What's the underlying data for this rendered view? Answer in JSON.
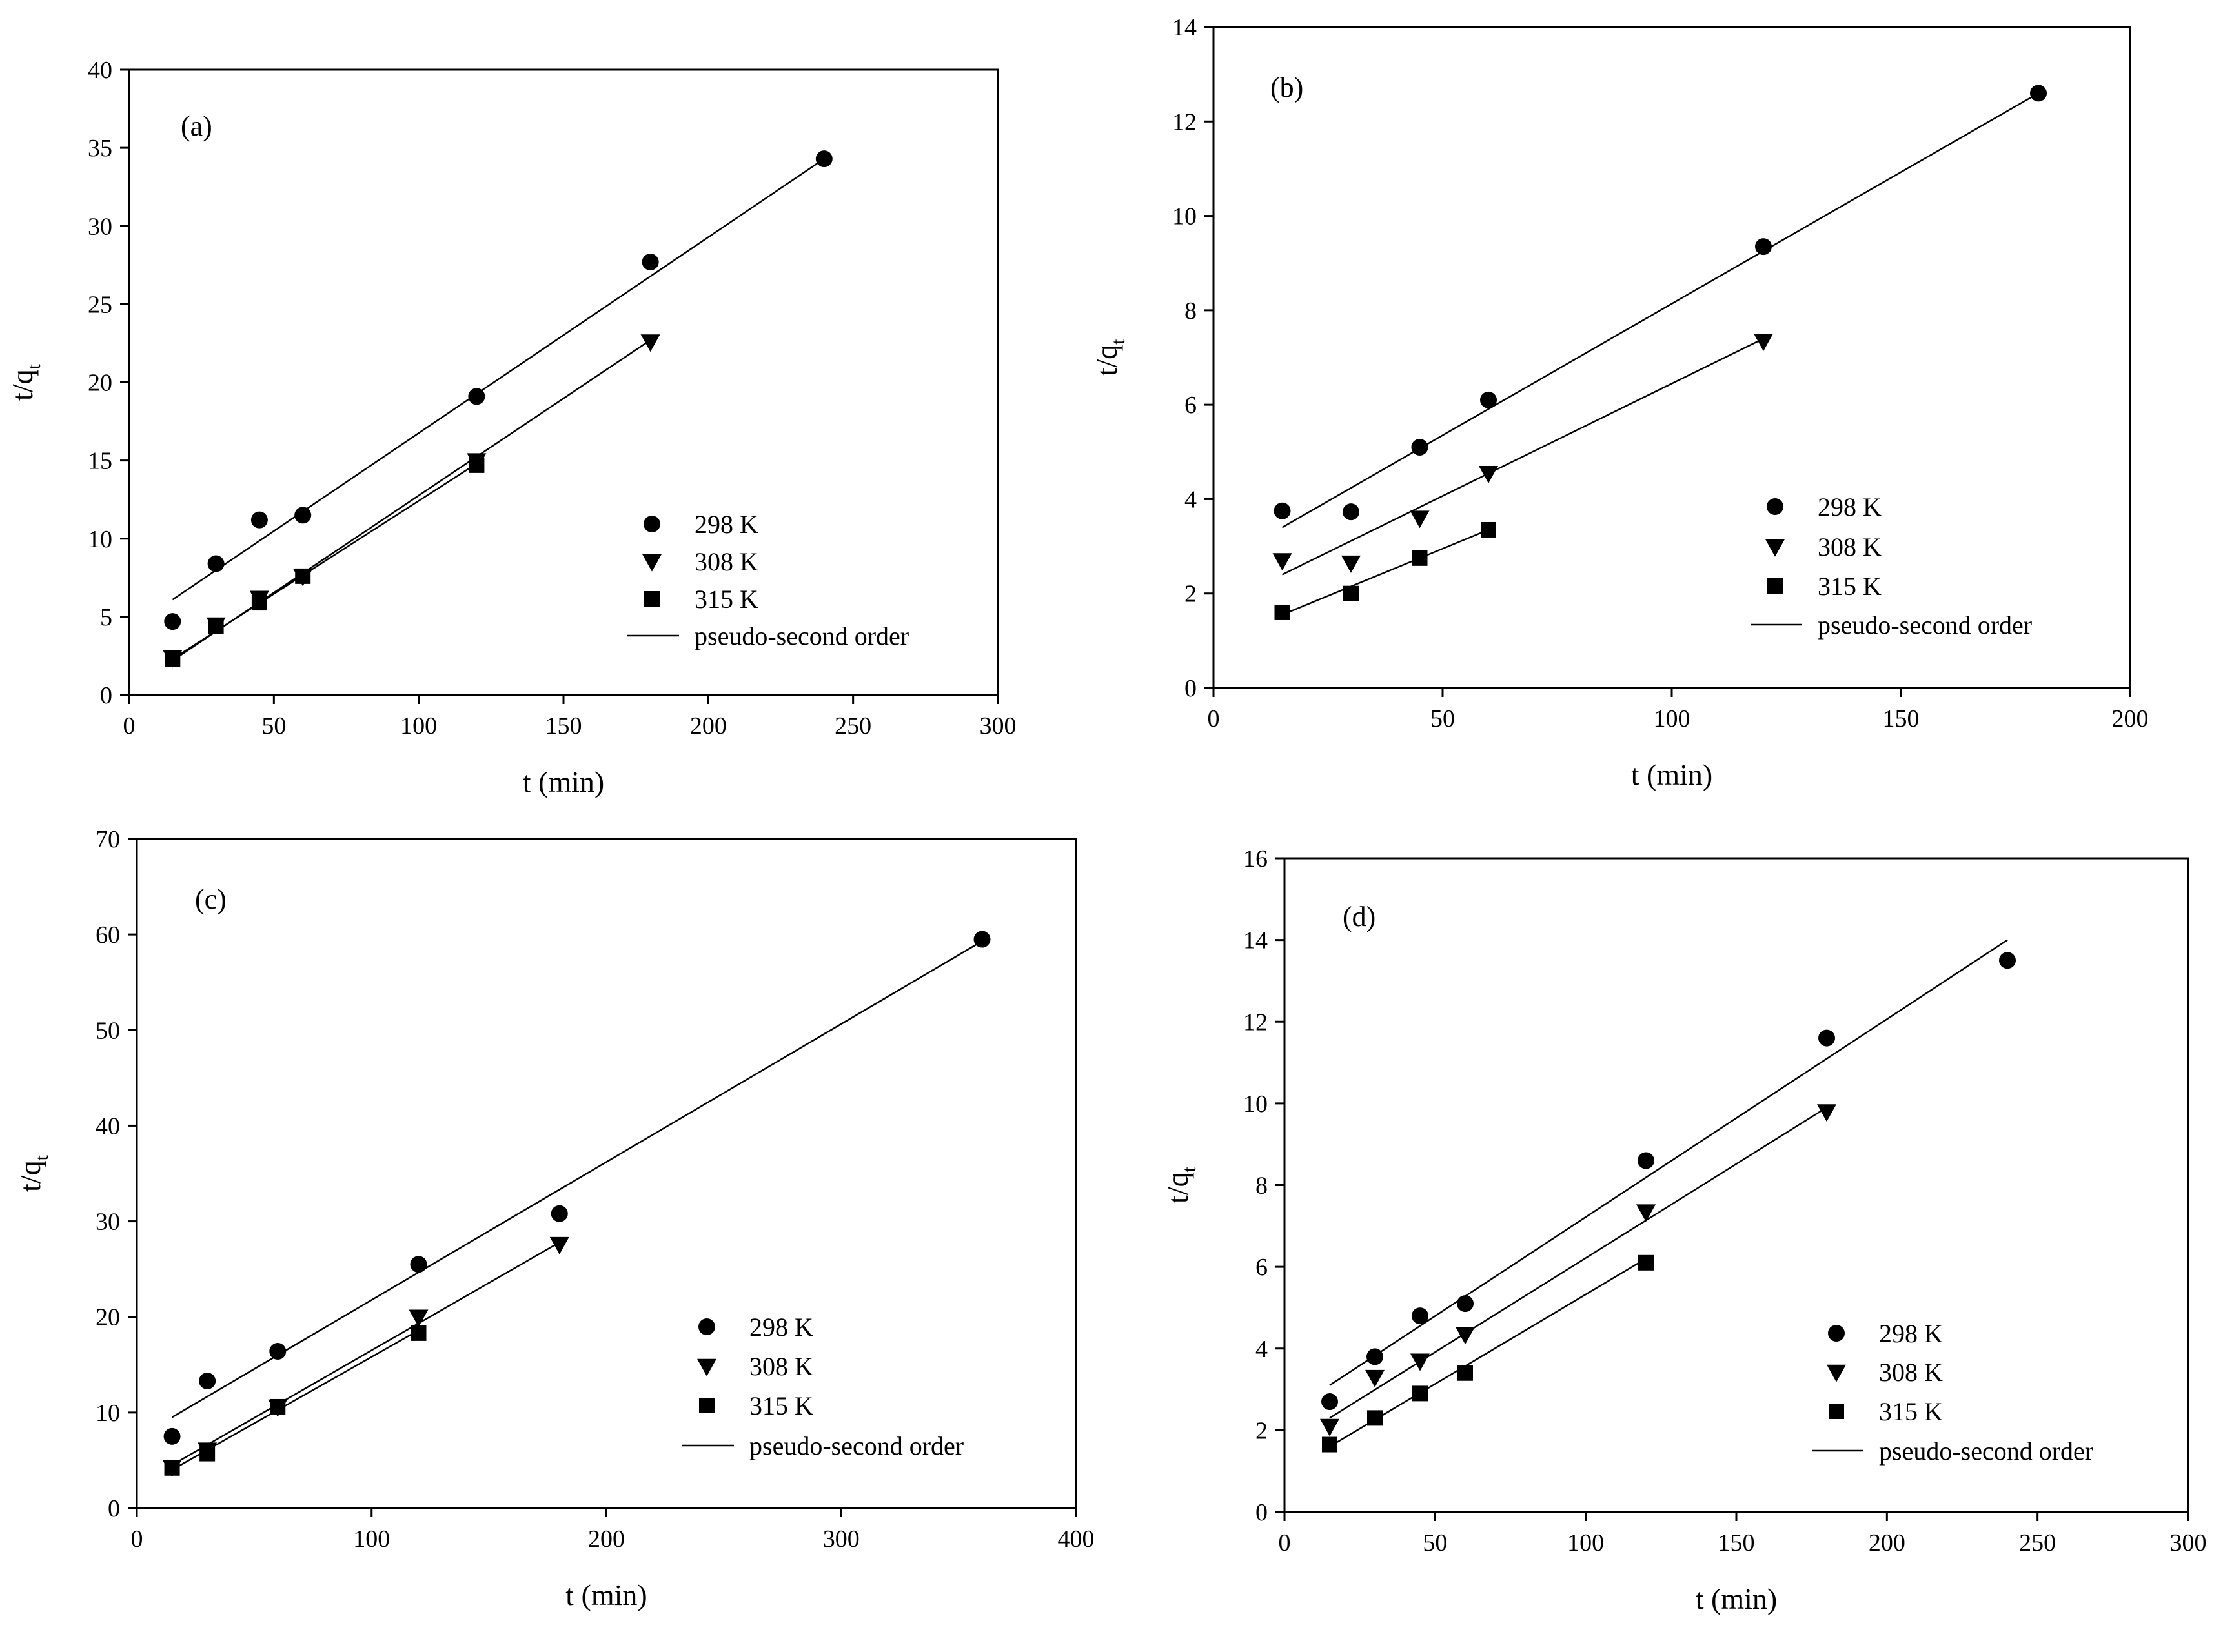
{
  "chart_data": [
    {
      "type": "scatter",
      "panel_label": "(a)",
      "xlabel": "t (min)",
      "ylabel": "t/q",
      "ylabel_sub": "t",
      "xlim": [
        0,
        300
      ],
      "ylim": [
        0,
        40
      ],
      "xticks": [
        0,
        50,
        100,
        150,
        200,
        250,
        300
      ],
      "yticks": [
        0,
        5,
        10,
        15,
        20,
        25,
        30,
        35,
        40
      ],
      "legend": [
        "298 K",
        "308 K",
        "315 K",
        "pseudo-second order"
      ],
      "legend_position": "bottom-right",
      "series": [
        {
          "name": "298 K",
          "marker": "circle",
          "x": [
            15,
            30,
            45,
            60,
            120,
            180,
            240
          ],
          "y": [
            4.7,
            8.4,
            11.2,
            11.5,
            19.1,
            27.7,
            34.3
          ],
          "fit": [
            [
              15,
              6.1
            ],
            [
              240,
              34.3
            ]
          ]
        },
        {
          "name": "308 K",
          "marker": "triangle-down",
          "x": [
            15,
            30,
            45,
            60,
            120,
            180
          ],
          "y": [
            2.4,
            4.5,
            6.2,
            7.6,
            15.0,
            22.6
          ],
          "fit": [
            [
              15,
              2.2
            ],
            [
              180,
              22.7
            ]
          ]
        },
        {
          "name": "315 K",
          "marker": "square",
          "x": [
            15,
            30,
            45,
            60,
            120
          ],
          "y": [
            2.3,
            4.4,
            5.9,
            7.6,
            14.7
          ],
          "fit": [
            [
              15,
              2.3
            ],
            [
              120,
              14.8
            ]
          ]
        }
      ]
    },
    {
      "type": "scatter",
      "panel_label": "(b)",
      "xlabel": "t (min)",
      "ylabel": "t/q",
      "ylabel_sub": "t",
      "xlim": [
        0,
        200
      ],
      "ylim": [
        0,
        14
      ],
      "xticks": [
        0,
        50,
        100,
        150,
        200
      ],
      "yticks": [
        0,
        2,
        4,
        6,
        8,
        10,
        12,
        14
      ],
      "legend": [
        "298 K",
        "308 K",
        "315 K",
        "pseudo-second order"
      ],
      "legend_position": "bottom-right",
      "series": [
        {
          "name": "298 K",
          "marker": "circle",
          "x": [
            15,
            30,
            45,
            60,
            120,
            180
          ],
          "y": [
            3.75,
            3.73,
            5.1,
            6.1,
            9.35,
            12.6
          ],
          "fit": [
            [
              15,
              3.4
            ],
            [
              180,
              12.6
            ]
          ]
        },
        {
          "name": "308 K",
          "marker": "triangle-down",
          "x": [
            15,
            30,
            45,
            60,
            120
          ],
          "y": [
            2.7,
            2.65,
            3.6,
            4.55,
            7.35
          ],
          "fit": [
            [
              15,
              2.4
            ],
            [
              120,
              7.4
            ]
          ]
        },
        {
          "name": "315 K",
          "marker": "square",
          "x": [
            15,
            30,
            45,
            60
          ],
          "y": [
            1.6,
            2.0,
            2.75,
            3.35
          ],
          "fit": [
            [
              15,
              1.55
            ],
            [
              60,
              3.35
            ]
          ]
        }
      ]
    },
    {
      "type": "scatter",
      "panel_label": "(c)",
      "xlabel": "t (min)",
      "ylabel": "t/q",
      "ylabel_sub": "t",
      "xlim": [
        0,
        400
      ],
      "ylim": [
        0,
        70
      ],
      "xticks": [
        0,
        100,
        200,
        300,
        400
      ],
      "yticks": [
        0,
        10,
        20,
        30,
        40,
        50,
        60,
        70
      ],
      "legend": [
        "298 K",
        "308 K",
        "315 K",
        "pseudo-second order"
      ],
      "legend_position": "bottom-right",
      "series": [
        {
          "name": "298 K",
          "marker": "circle",
          "x": [
            15,
            30,
            60,
            120,
            180,
            360
          ],
          "y": [
            7.5,
            13.3,
            16.4,
            25.5,
            30.8,
            59.5
          ],
          "fit": [
            [
              15,
              9.5
            ],
            [
              360,
              59.3
            ]
          ]
        },
        {
          "name": "308 K",
          "marker": "triangle-down",
          "x": [
            15,
            30,
            60,
            120,
            180
          ],
          "y": [
            4.3,
            6.1,
            10.6,
            20.0,
            27.6
          ],
          "fit": [
            [
              15,
              4.5
            ],
            [
              180,
              27.8
            ]
          ]
        },
        {
          "name": "315 K",
          "marker": "square",
          "x": [
            15,
            30,
            60,
            120
          ],
          "y": [
            4.2,
            5.7,
            10.6,
            18.3
          ],
          "fit": [
            [
              15,
              4.0
            ],
            [
              120,
              18.6
            ]
          ]
        }
      ]
    },
    {
      "type": "scatter",
      "panel_label": "(d)",
      "xlabel": "t (min)",
      "ylabel": "t/q",
      "ylabel_sub": "t",
      "xlim": [
        0,
        300
      ],
      "ylim": [
        0,
        16
      ],
      "xticks": [
        0,
        50,
        100,
        150,
        200,
        250,
        300
      ],
      "yticks": [
        0,
        2,
        4,
        6,
        8,
        10,
        12,
        14,
        16
      ],
      "legend": [
        "298 K",
        "308 K",
        "315 K",
        "pseudo-second order"
      ],
      "legend_position": "bottom-right",
      "series": [
        {
          "name": "298 K",
          "marker": "circle",
          "x": [
            15,
            30,
            45,
            60,
            120,
            180,
            240
          ],
          "y": [
            2.7,
            3.8,
            4.8,
            5.1,
            8.6,
            11.6,
            13.5
          ],
          "fit": [
            [
              15,
              3.1
            ],
            [
              240,
              14.0
            ]
          ]
        },
        {
          "name": "308 K",
          "marker": "triangle-down",
          "x": [
            15,
            30,
            45,
            60,
            120,
            180
          ],
          "y": [
            2.1,
            3.3,
            3.7,
            4.35,
            7.35,
            9.8
          ],
          "fit": [
            [
              15,
              2.3
            ],
            [
              180,
              9.9
            ]
          ]
        },
        {
          "name": "315 K",
          "marker": "square",
          "x": [
            15,
            30,
            45,
            60,
            120
          ],
          "y": [
            1.65,
            2.3,
            2.9,
            3.4,
            6.1
          ],
          "fit": [
            [
              15,
              1.6
            ],
            [
              120,
              6.2
            ]
          ]
        }
      ]
    }
  ]
}
